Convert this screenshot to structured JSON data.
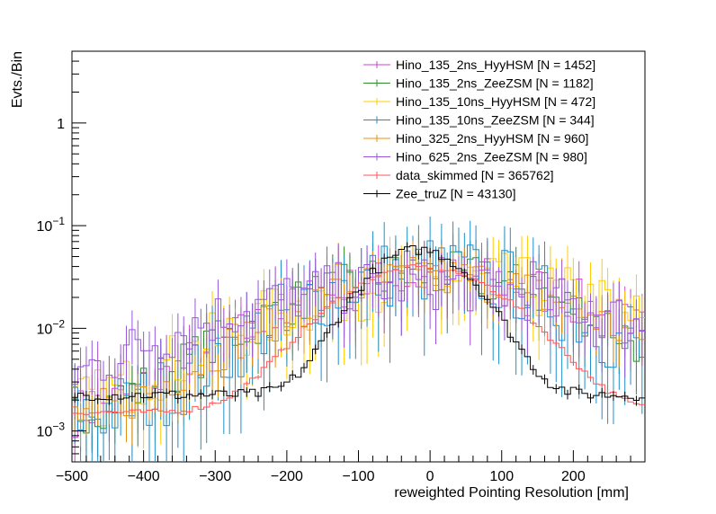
{
  "chart_data": {
    "type": "line",
    "title": "",
    "xlabel": "reweighted Pointing Resolution [mm]",
    "ylabel": "Evts./Bin",
    "xlim": [
      -500,
      300
    ],
    "ylim": [
      0.0005,
      5
    ],
    "yscale": "log",
    "x_tick_labels": [
      "−500",
      "−400",
      "−300",
      "−200",
      "−100",
      "0",
      "100",
      "200"
    ],
    "x_tick_values": [
      -500,
      -400,
      -300,
      -200,
      -100,
      0,
      100,
      200
    ],
    "y_tick_labels": [
      {
        "base": "10",
        "exp": "−3",
        "value": 0.001
      },
      {
        "base": "10",
        "exp": "−2",
        "value": 0.01
      },
      {
        "base": "10",
        "exp": "−1",
        "value": 0.1
      },
      {
        "base": "1",
        "exp": "",
        "value": 1
      }
    ],
    "legend_position": "top-right",
    "series": [
      {
        "name": "Hino_135_2ns_HyyHSM [N = 1452]",
        "color": "#cc44cc",
        "center": 20,
        "sigma": 170,
        "peak": 0.03,
        "noise": 0.55
      },
      {
        "name": "Hino_135_2ns_ZeeZSM [N = 1182]",
        "color": "#2e8b2e",
        "center": 0,
        "sigma": 160,
        "peak": 0.032,
        "noise": 0.55
      },
      {
        "name": "Hino_135_10ns_HyyHSM [N = 472]",
        "color": "#ffcc00",
        "center": 30,
        "sigma": 190,
        "peak": 0.028,
        "noise": 0.7
      },
      {
        "name": "Hino_135_10ns_ZeeZSM [N = 344]",
        "color": "#1f8fcc",
        "center": 0,
        "sigma": 140,
        "peak": 0.035,
        "noise": 0.8
      },
      {
        "name": "Hino_325_2ns_HyyHSM [N = 960]",
        "color": "#e8900e",
        "center": 10,
        "sigma": 160,
        "peak": 0.03,
        "noise": 0.5
      },
      {
        "name": "Hino_625_2ns_ZeeZSM [N = 980]",
        "color": "#9955dd",
        "center": -20,
        "sigma": 220,
        "peak": 0.026,
        "noise": 0.6
      },
      {
        "name": "data_skimmed [N = 365762]",
        "color": "#ff5555",
        "center": -10,
        "sigma": 95,
        "peak": 0.038,
        "noise": 0.06
      },
      {
        "name": "Zee_truZ [N = 43130]",
        "color": "#000000",
        "center": -15,
        "sigma": 62,
        "peak": 0.056,
        "noise": 0.12
      }
    ]
  }
}
